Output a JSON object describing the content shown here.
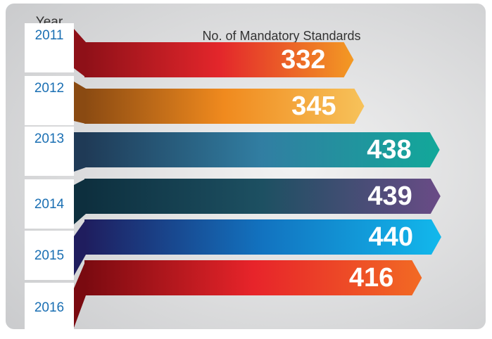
{
  "chart_data": {
    "type": "bar",
    "title": "No. of Mandatory Standards",
    "category_label": "Year",
    "categories": [
      "2011",
      "2012",
      "2013",
      "2014",
      "2015",
      "2016"
    ],
    "values": [
      332,
      345,
      438,
      439,
      440,
      416
    ],
    "colors": [
      [
        "#8e1018",
        "#e3262b",
        "#f39a24"
      ],
      [
        "#8a4a12",
        "#f08a1e",
        "#f7c25a"
      ],
      [
        "#1f3a56",
        "#317ea2",
        "#12a89a"
      ],
      [
        "#0d2f3e",
        "#1d5062",
        "#6a4b86"
      ],
      [
        "#1f1d5e",
        "#1273c0",
        "#12b8ec"
      ],
      [
        "#7a0a10",
        "#e7242a",
        "#f26a24"
      ]
    ],
    "xlim": [
      0,
      460
    ]
  }
}
